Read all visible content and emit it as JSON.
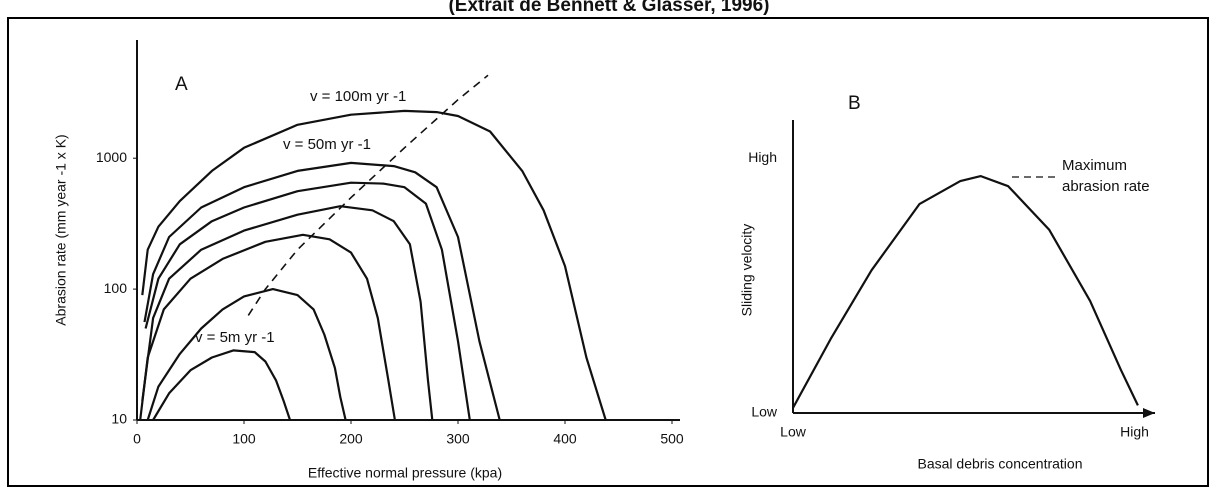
{
  "caption": "(Extrait de Bennett & Glasser, 1996)",
  "chart_data": [
    {
      "type": "line",
      "log_y": true,
      "grid": false,
      "xlabel": "Effective normal pressure (kpa)",
      "ylabel": "Abrasion rate (mm year -1 x K)",
      "xlim": [
        0,
        500
      ],
      "xticks": [
        0,
        100,
        200,
        300,
        400,
        500
      ],
      "ylim": [
        10,
        8000
      ],
      "yticks": [
        10,
        100,
        1000
      ],
      "annotations": [
        "A",
        "v = 100m yr -1",
        "v = 50m yr -1",
        "v = 5m yr -1"
      ],
      "series": [
        {
          "color": "#111",
          "style": "solid",
          "x": [
            5,
            10,
            20,
            40,
            70,
            100,
            150,
            200,
            250,
            280,
            300,
            330,
            360,
            380,
            400,
            420,
            438
          ],
          "values": [
            90,
            200,
            300,
            470,
            800,
            1200,
            1800,
            2150,
            2300,
            2250,
            2100,
            1600,
            800,
            400,
            150,
            30,
            10
          ]
        },
        {
          "color": "#111",
          "style": "solid",
          "x": [
            7,
            15,
            30,
            60,
            100,
            150,
            200,
            240,
            260,
            280,
            300,
            320,
            339
          ],
          "values": [
            56,
            130,
            250,
            420,
            600,
            800,
            920,
            870,
            780,
            600,
            250,
            40,
            10
          ]
        },
        {
          "color": "#111",
          "style": "solid",
          "x": [
            8,
            20,
            40,
            70,
            100,
            150,
            200,
            230,
            250,
            270,
            285,
            300,
            311
          ],
          "values": [
            50,
            120,
            220,
            330,
            420,
            560,
            650,
            640,
            600,
            450,
            200,
            40,
            10
          ]
        },
        {
          "color": "#111",
          "style": "solid",
          "x": [
            5,
            15,
            30,
            60,
            100,
            150,
            190,
            220,
            240,
            255,
            265,
            272,
            276
          ],
          "values": [
            14,
            60,
            120,
            200,
            280,
            370,
            430,
            400,
            330,
            220,
            80,
            20,
            10
          ]
        },
        {
          "color": "#111",
          "style": "solid",
          "x": [
            3,
            10,
            25,
            50,
            80,
            120,
            155,
            180,
            200,
            215,
            225,
            235,
            241
          ],
          "values": [
            10,
            30,
            70,
            120,
            170,
            230,
            260,
            240,
            190,
            120,
            60,
            20,
            10
          ]
        },
        {
          "color": "#111",
          "style": "solid",
          "x": [
            10,
            20,
            40,
            60,
            80,
            100,
            127,
            150,
            165,
            175,
            185,
            190,
            195
          ],
          "values": [
            10,
            18,
            32,
            50,
            70,
            88,
            100,
            90,
            70,
            45,
            25,
            15,
            10
          ]
        },
        {
          "color": "#111",
          "style": "solid",
          "x": [
            15,
            30,
            50,
            70,
            90,
            110,
            120,
            130,
            137,
            143
          ],
          "values": [
            10,
            16,
            24,
            30,
            34,
            33,
            28,
            20,
            14,
            10
          ]
        },
        {
          "color": "#111",
          "style": "dashed",
          "x": [
            104,
            120,
            150,
            200,
            250,
            300,
            328
          ],
          "values": [
            63,
            100,
            200,
            500,
            1200,
            2800,
            4300
          ]
        }
      ]
    },
    {
      "type": "line",
      "log_y": false,
      "grid": false,
      "xlabel": "Basal debris concentration",
      "ylabel": "Sliding velocity",
      "xlim": [
        0,
        1.06
      ],
      "xticks": [
        {
          "value": 0,
          "label": "Low"
        },
        {
          "value": 1,
          "label": "High"
        }
      ],
      "ylim": [
        0,
        1.15
      ],
      "yticks": [
        {
          "value": 0,
          "label": "Low"
        },
        {
          "value": 1,
          "label": "High"
        }
      ],
      "annotations": [
        "B",
        "Maximum",
        "abrasion rate"
      ],
      "series": [
        {
          "color": "#111",
          "style": "solid",
          "x": [
            0,
            0.11,
            0.23,
            0.37,
            0.49,
            0.55,
            0.63,
            0.75,
            0.87,
            0.96,
            1.01
          ],
          "values": [
            0.02,
            0.29,
            0.56,
            0.82,
            0.91,
            0.93,
            0.89,
            0.72,
            0.44,
            0.17,
            0.03
          ]
        }
      ]
    }
  ]
}
